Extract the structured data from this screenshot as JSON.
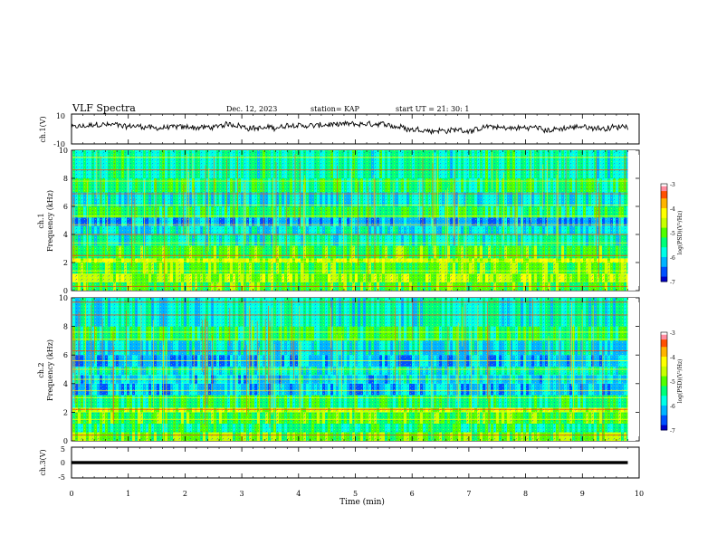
{
  "header": {
    "title": "VLF Spectra",
    "date": "Dec. 12, 2023",
    "station": "station= KAP",
    "start": "start  UT  =   21: 30: 1"
  },
  "colorbar": {
    "label": "log(PSD)(V²/Hz)",
    "ticks": [
      "-3",
      "-4",
      "-5",
      "-6",
      "-7"
    ],
    "colors": [
      "#000000",
      "#0000b4",
      "#0032ff",
      "#00b4ff",
      "#00ffd2",
      "#00ff64",
      "#3cff00",
      "#c8ff00",
      "#ffff00",
      "#ffb400",
      "#ff5000",
      "#e60000",
      "#ff8ca0",
      "#ffffff"
    ]
  },
  "chart_data": [
    {
      "type": "line",
      "name": "ch1-waveform",
      "ylabel": "ch.1(V)",
      "ylim": [
        -10,
        10
      ],
      "yticks": [
        "10",
        "-10"
      ],
      "xlim": [
        0,
        10
      ],
      "x_visible_end": 9.8,
      "approx_envelope_V": [
        -3,
        5
      ]
    },
    {
      "type": "heatmap",
      "name": "ch1-spectrogram",
      "ylabel": "ch.1\nFrequency (kHz)",
      "ylim": [
        0,
        10
      ],
      "yticks": [
        "0",
        "2",
        "4",
        "6",
        "8",
        "10"
      ],
      "xlim": [
        0,
        10
      ],
      "x_visible_end": 9.8,
      "bands_kHz": [
        {
          "lo": 0.0,
          "hi": 0.6,
          "level": 0.48
        },
        {
          "lo": 0.6,
          "hi": 1.2,
          "level": 0.58
        },
        {
          "lo": 1.2,
          "hi": 2.0,
          "level": 0.5
        },
        {
          "lo": 2.0,
          "hi": 2.3,
          "level": 0.62
        },
        {
          "lo": 2.3,
          "hi": 3.2,
          "level": 0.47
        },
        {
          "lo": 3.2,
          "hi": 4.0,
          "level": 0.33
        },
        {
          "lo": 4.0,
          "hi": 4.6,
          "level": 0.28
        },
        {
          "lo": 4.6,
          "hi": 5.2,
          "level": 0.18
        },
        {
          "lo": 5.2,
          "hi": 6.0,
          "level": 0.42
        },
        {
          "lo": 6.0,
          "hi": 7.0,
          "level": 0.3
        },
        {
          "lo": 7.0,
          "hi": 8.0,
          "level": 0.4
        },
        {
          "lo": 8.0,
          "hi": 10.0,
          "level": 0.35
        }
      ],
      "lines_kHz": [
        0.3,
        1.4,
        2.1,
        2.5,
        3.4,
        4.0,
        4.7,
        5.3,
        6.1,
        6.9,
        7.8,
        8.6,
        9.5
      ]
    },
    {
      "type": "heatmap",
      "name": "ch2-spectrogram",
      "ylabel": "ch.2\nFrequency (kHz)",
      "ylim": [
        0,
        10
      ],
      "yticks": [
        "0",
        "2",
        "4",
        "6",
        "8",
        "10"
      ],
      "xlim": [
        0,
        10
      ],
      "x_visible_end": 9.8,
      "bands_kHz": [
        {
          "lo": 0.0,
          "hi": 0.6,
          "level": 0.52
        },
        {
          "lo": 0.6,
          "hi": 1.2,
          "level": 0.4
        },
        {
          "lo": 1.2,
          "hi": 2.0,
          "level": 0.48
        },
        {
          "lo": 2.0,
          "hi": 2.3,
          "level": 0.6
        },
        {
          "lo": 2.3,
          "hi": 3.2,
          "level": 0.4
        },
        {
          "lo": 3.2,
          "hi": 4.0,
          "level": 0.22
        },
        {
          "lo": 4.0,
          "hi": 4.6,
          "level": 0.25
        },
        {
          "lo": 4.6,
          "hi": 5.2,
          "level": 0.33
        },
        {
          "lo": 5.2,
          "hi": 6.0,
          "level": 0.2
        },
        {
          "lo": 6.0,
          "hi": 7.0,
          "level": 0.27
        },
        {
          "lo": 7.0,
          "hi": 8.0,
          "level": 0.42
        },
        {
          "lo": 8.0,
          "hi": 10.0,
          "level": 0.32
        }
      ],
      "lines_kHz": [
        0.4,
        1.5,
        2.2,
        3.0,
        3.5,
        4.3,
        5.0,
        5.6,
        6.3,
        7.1,
        7.6,
        8.8,
        9.7
      ]
    },
    {
      "type": "line",
      "name": "ch3-waveform",
      "ylabel": "ch.3(V)",
      "ylim": [
        -5,
        5
      ],
      "yticks": [
        "5",
        "0",
        "-5"
      ],
      "xlim": [
        0,
        10
      ],
      "x_visible_end": 9.8,
      "approx_value_V": 0,
      "approx_thickness_V": 1.0
    }
  ],
  "xaxis": {
    "label": "Time (min)",
    "ticks": [
      "0",
      "1",
      "2",
      "3",
      "4",
      "5",
      "6",
      "7",
      "8",
      "9",
      "10"
    ]
  }
}
